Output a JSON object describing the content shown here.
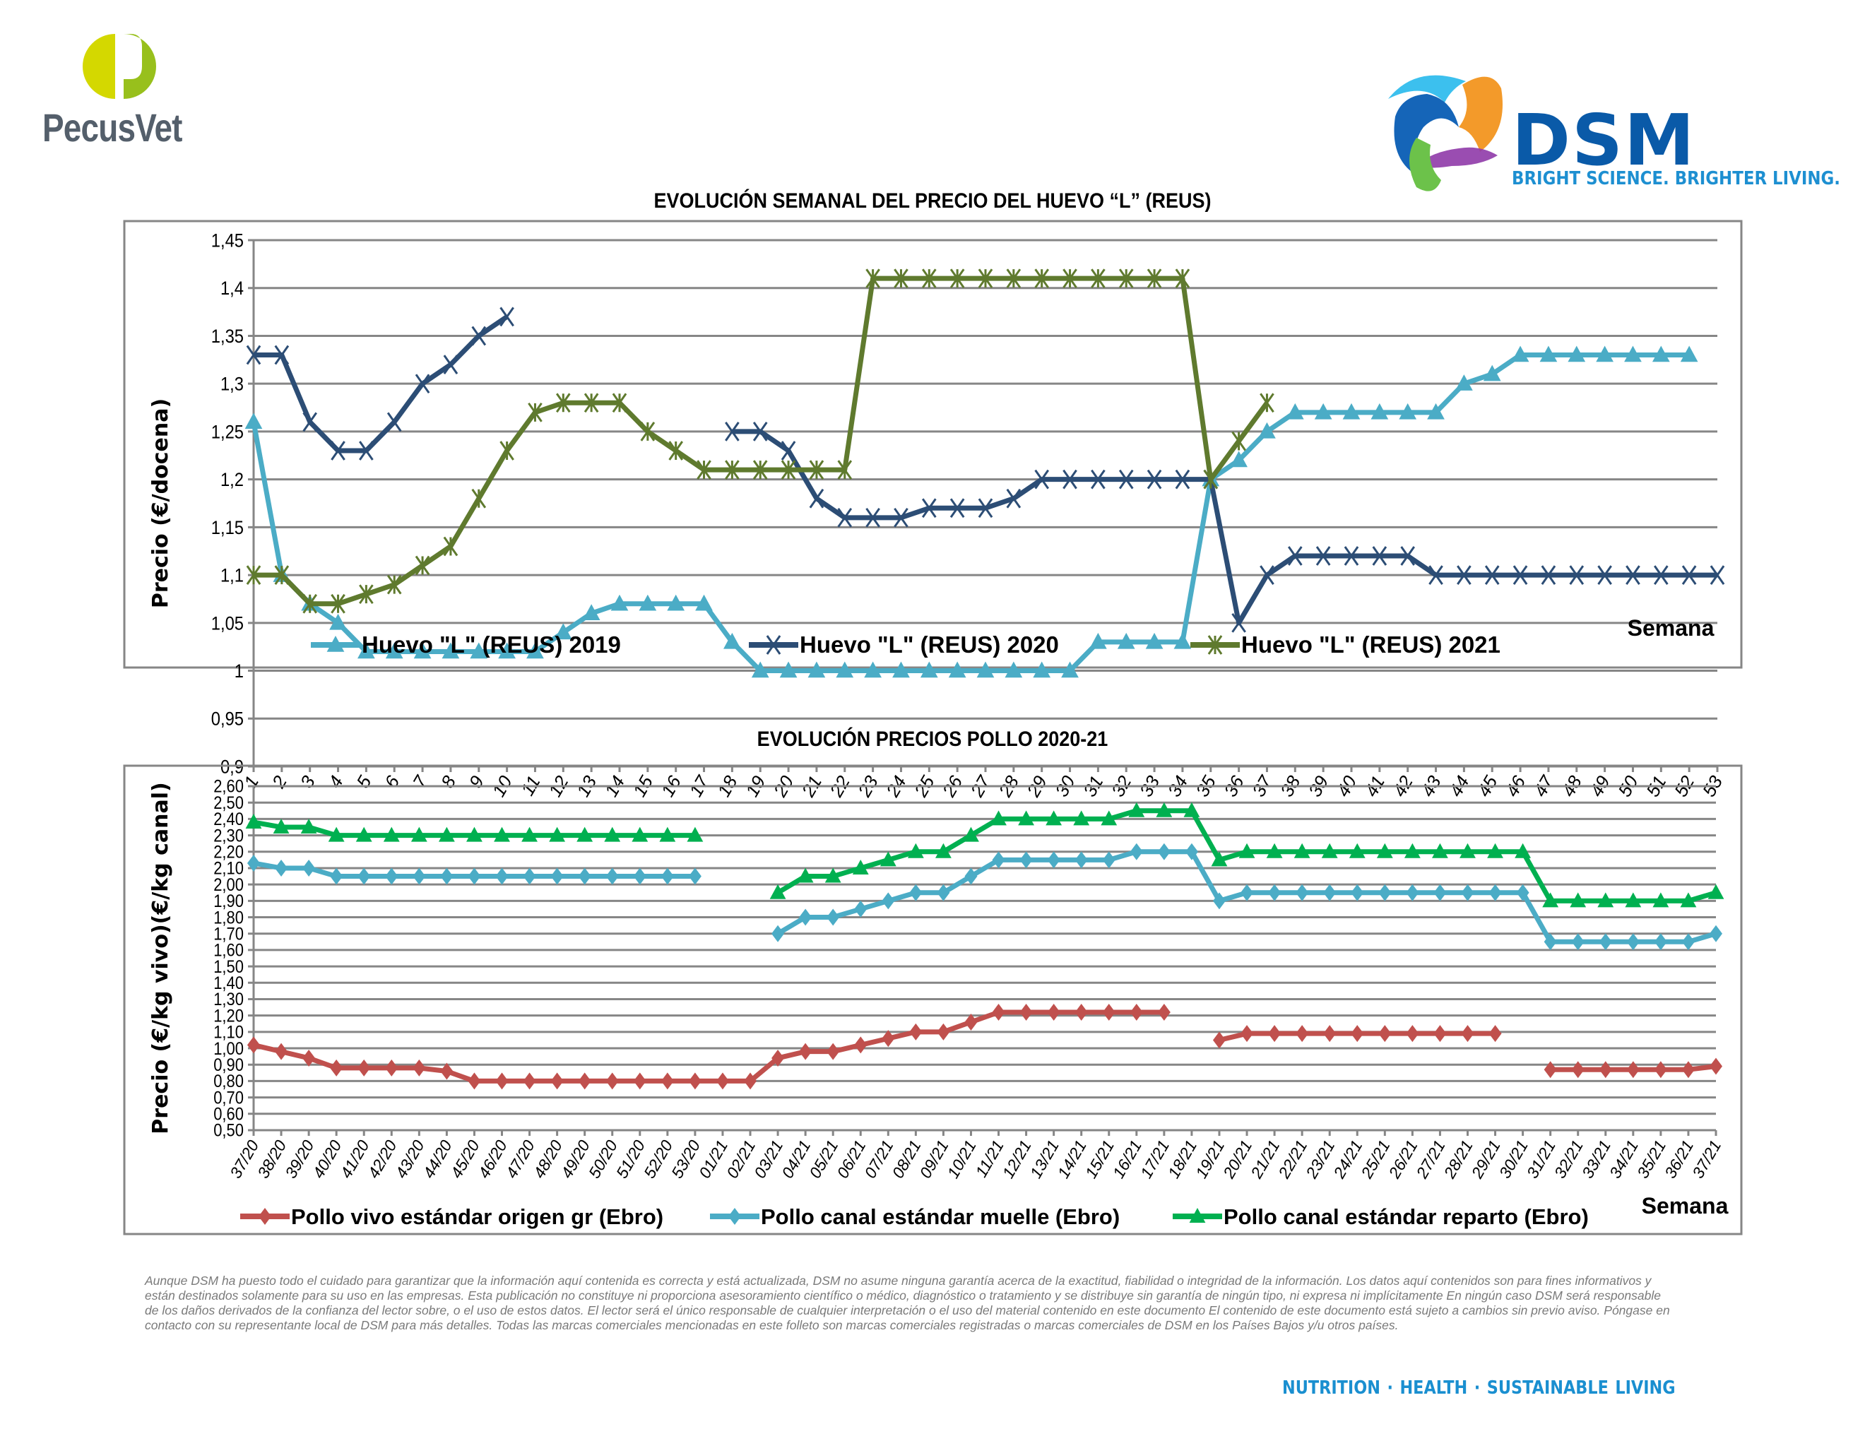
{
  "header": {
    "left_logo": {
      "name": "PecusVet",
      "colors": [
        "#d4d800",
        "#98c01c",
        "#545f6b"
      ]
    },
    "right_logo": {
      "name": "DSM",
      "tagline": "BRIGHT SCIENCE. BRIGHTER LIVING.",
      "color": "#0a5aa8",
      "tagline_color": "#1d8fd1"
    }
  },
  "chart_data": [
    {
      "type": "line",
      "title": "EVOLUCIÓN SEMANAL DEL PRECIO DEL HUEVO “L” (REUS)",
      "xlabel": "Semana",
      "ylabel": "Precio (€/docena)",
      "ylim": [
        0.9,
        1.45
      ],
      "yticks": [
        "0,9",
        "0,95",
        "1",
        "1,05",
        "1,1",
        "1,15",
        "1,2",
        "1,25",
        "1,3",
        "1,35",
        "1,4",
        "1,45"
      ],
      "ytick_values": [
        0.9,
        0.95,
        1.0,
        1.05,
        1.1,
        1.15,
        1.2,
        1.25,
        1.3,
        1.35,
        1.4,
        1.45
      ],
      "grid": true,
      "legend_position": "bottom",
      "categories": [
        "1",
        "2",
        "3",
        "4",
        "5",
        "6",
        "7",
        "8",
        "9",
        "10",
        "11",
        "12",
        "13",
        "14",
        "15",
        "16",
        "17",
        "18",
        "19",
        "20",
        "21",
        "22",
        "23",
        "24",
        "25",
        "26",
        "27",
        "28",
        "29",
        "30",
        "31",
        "32",
        "33",
        "34",
        "35",
        "36",
        "37",
        "38",
        "39",
        "40",
        "41",
        "42",
        "43",
        "44",
        "45",
        "46",
        "47",
        "48",
        "49",
        "50",
        "51",
        "52",
        "53"
      ],
      "series": [
        {
          "name": "Huevo \"L\" (REUS) 2019",
          "color": "#4bacc6",
          "marker": "triangle",
          "values": [
            1.26,
            1.1,
            1.07,
            1.05,
            1.02,
            1.02,
            1.02,
            1.02,
            1.02,
            1.02,
            1.02,
            1.04,
            1.06,
            1.07,
            1.07,
            1.07,
            1.07,
            1.03,
            1.0,
            1.0,
            1.0,
            1.0,
            1.0,
            1.0,
            1.0,
            1.0,
            1.0,
            1.0,
            1.0,
            1.0,
            1.03,
            1.03,
            1.03,
            1.03,
            1.2,
            1.22,
            1.25,
            1.27,
            1.27,
            1.27,
            1.27,
            1.27,
            1.27,
            1.3,
            1.31,
            1.33,
            1.33,
            1.33,
            1.33,
            1.33,
            1.33,
            1.33,
            null
          ]
        },
        {
          "name": "Huevo \"L\" (REUS) 2020",
          "color": "#2c4d75",
          "marker": "x",
          "values": [
            1.33,
            1.33,
            1.26,
            1.23,
            1.23,
            1.26,
            1.3,
            1.32,
            1.35,
            1.37,
            null,
            null,
            null,
            null,
            null,
            null,
            null,
            1.25,
            1.25,
            1.23,
            1.18,
            1.16,
            1.16,
            1.16,
            1.17,
            1.17,
            1.17,
            1.18,
            1.2,
            1.2,
            1.2,
            1.2,
            1.2,
            1.2,
            1.2,
            1.05,
            1.1,
            1.12,
            1.12,
            1.12,
            1.12,
            1.12,
            1.1,
            1.1,
            1.1,
            1.1,
            1.1,
            1.1,
            1.1,
            1.1,
            1.1,
            1.1,
            1.1
          ]
        },
        {
          "name": "Huevo \"L\" (REUS) 2021",
          "color": "#5f7a2e",
          "marker": "star",
          "values": [
            1.1,
            1.1,
            1.07,
            1.07,
            1.08,
            1.09,
            1.11,
            1.13,
            1.18,
            1.23,
            1.27,
            1.28,
            1.28,
            1.28,
            1.25,
            1.23,
            1.21,
            1.21,
            1.21,
            1.21,
            1.21,
            1.21,
            1.41,
            1.41,
            1.41,
            1.41,
            1.41,
            1.41,
            1.41,
            1.41,
            1.41,
            1.41,
            1.41,
            1.41,
            1.2,
            1.24,
            1.28,
            null,
            null,
            null,
            null,
            null,
            null,
            null,
            null,
            null,
            null,
            null,
            null,
            null,
            null,
            null,
            null
          ]
        }
      ]
    },
    {
      "type": "line",
      "title": "EVOLUCIÓN PRECIOS POLLO 2020-21",
      "xlabel": "Semana",
      "ylabel": "Precio (€/kg vivo)(€/kg canal)",
      "ylim": [
        0.5,
        2.6
      ],
      "yticks": [
        "0,50",
        "0,60",
        "0,70",
        "0,80",
        "0,90",
        "1,00",
        "1,10",
        "1,20",
        "1,30",
        "1,40",
        "1,50",
        "1,60",
        "1,70",
        "1,80",
        "1,90",
        "2,00",
        "2,10",
        "2,20",
        "2,30",
        "2,40",
        "2,50",
        "2,60"
      ],
      "ytick_values": [
        0.5,
        0.6,
        0.7,
        0.8,
        0.9,
        1.0,
        1.1,
        1.2,
        1.3,
        1.4,
        1.5,
        1.6,
        1.7,
        1.8,
        1.9,
        2.0,
        2.1,
        2.2,
        2.3,
        2.4,
        2.5,
        2.6
      ],
      "grid": true,
      "legend_position": "bottom",
      "categories": [
        "37/20",
        "38/20",
        "39/20",
        "40/20",
        "41/20",
        "42/20",
        "43/20",
        "44/20",
        "45/20",
        "46/20",
        "47/20",
        "48/20",
        "49/20",
        "50/20",
        "51/20",
        "52/20",
        "53/20",
        "01/21",
        "02/21",
        "03/21",
        "04/21",
        "05/21",
        "06/21",
        "07/21",
        "08/21",
        "09/21",
        "10/21",
        "11/21",
        "12/21",
        "13/21",
        "14/21",
        "15/21",
        "16/21",
        "17/21",
        "18/21",
        "19/21",
        "20/21",
        "21/21",
        "22/21",
        "23/21",
        "24/21",
        "25/21",
        "26/21",
        "27/21",
        "28/21",
        "29/21",
        "30/21",
        "31/21",
        "32/21",
        "33/21",
        "34/21",
        "35/21",
        "36/21",
        "37/21"
      ],
      "series": [
        {
          "name": "Pollo vivo estándar origen gr (Ebro)",
          "color": "#c0504d",
          "marker": "diamond",
          "values": [
            1.02,
            0.98,
            0.94,
            0.88,
            0.88,
            0.88,
            0.88,
            0.86,
            0.8,
            0.8,
            0.8,
            0.8,
            0.8,
            0.8,
            0.8,
            0.8,
            0.8,
            0.8,
            0.8,
            0.94,
            0.98,
            0.98,
            1.02,
            1.06,
            1.1,
            1.1,
            1.16,
            1.22,
            1.22,
            1.22,
            1.22,
            1.22,
            1.22,
            1.22,
            null,
            1.05,
            1.09,
            1.09,
            1.09,
            1.09,
            1.09,
            1.09,
            1.09,
            1.09,
            1.09,
            1.09,
            null,
            0.87,
            0.87,
            0.87,
            0.87,
            0.87,
            0.87,
            0.89
          ]
        },
        {
          "name": "Pollo canal estándar muelle (Ebro)",
          "color": "#4bacc6",
          "marker": "diamond",
          "values": [
            2.13,
            2.1,
            2.1,
            2.05,
            2.05,
            2.05,
            2.05,
            2.05,
            2.05,
            2.05,
            2.05,
            2.05,
            2.05,
            2.05,
            2.05,
            2.05,
            2.05,
            null,
            null,
            1.7,
            1.8,
            1.8,
            1.85,
            1.9,
            1.95,
            1.95,
            2.05,
            2.15,
            2.15,
            2.15,
            2.15,
            2.15,
            2.2,
            2.2,
            2.2,
            1.9,
            1.95,
            1.95,
            1.95,
            1.95,
            1.95,
            1.95,
            1.95,
            1.95,
            1.95,
            1.95,
            1.95,
            1.65,
            1.65,
            1.65,
            1.65,
            1.65,
            1.65,
            1.7
          ]
        },
        {
          "name": "Pollo canal estándar reparto (Ebro)",
          "color": "#00b050",
          "marker": "triangle",
          "values": [
            2.38,
            2.35,
            2.35,
            2.3,
            2.3,
            2.3,
            2.3,
            2.3,
            2.3,
            2.3,
            2.3,
            2.3,
            2.3,
            2.3,
            2.3,
            2.3,
            2.3,
            null,
            null,
            1.95,
            2.05,
            2.05,
            2.1,
            2.15,
            2.2,
            2.2,
            2.3,
            2.4,
            2.4,
            2.4,
            2.4,
            2.4,
            2.45,
            2.45,
            2.45,
            2.15,
            2.2,
            2.2,
            2.2,
            2.2,
            2.2,
            2.2,
            2.2,
            2.2,
            2.2,
            2.2,
            2.2,
            1.9,
            1.9,
            1.9,
            1.9,
            1.9,
            1.9,
            1.95
          ]
        }
      ]
    }
  ],
  "footer": {
    "disclaimer": "Aunque DSM ha puesto todo el cuidado para garantizar que la información aquí contenida es correcta y está actualizada, DSM no asume ninguna garantía acerca de la exactitud, fiabilidad o integridad de la información. Los datos aquí contenidos son para fines informativos y están destinados solamente para su uso en las empresas. Esta publicación no constituye ni proporciona asesoramiento científico o médico, diagnóstico o tratamiento y se distribuye sin garantía de ningún tipo, ni expresa ni implícitamente En ningún caso DSM será responsable de los daños derivados de la confianza del lector sobre, o el uso de estos datos. El lector será el único responsable de cualquier interpretación o el uso del material contenido en este documento El contenido de este documento está sujeto a cambios sin previo aviso. Póngase en contacto con su representante local de DSM para más detalles. Todas las marcas comerciales mencionadas en este folleto son marcas comerciales registradas o marcas comerciales de DSM en los Países Bajos y/u otros países.",
    "tagline": "NUTRITION · HEALTH · SUSTAINABLE LIVING"
  }
}
